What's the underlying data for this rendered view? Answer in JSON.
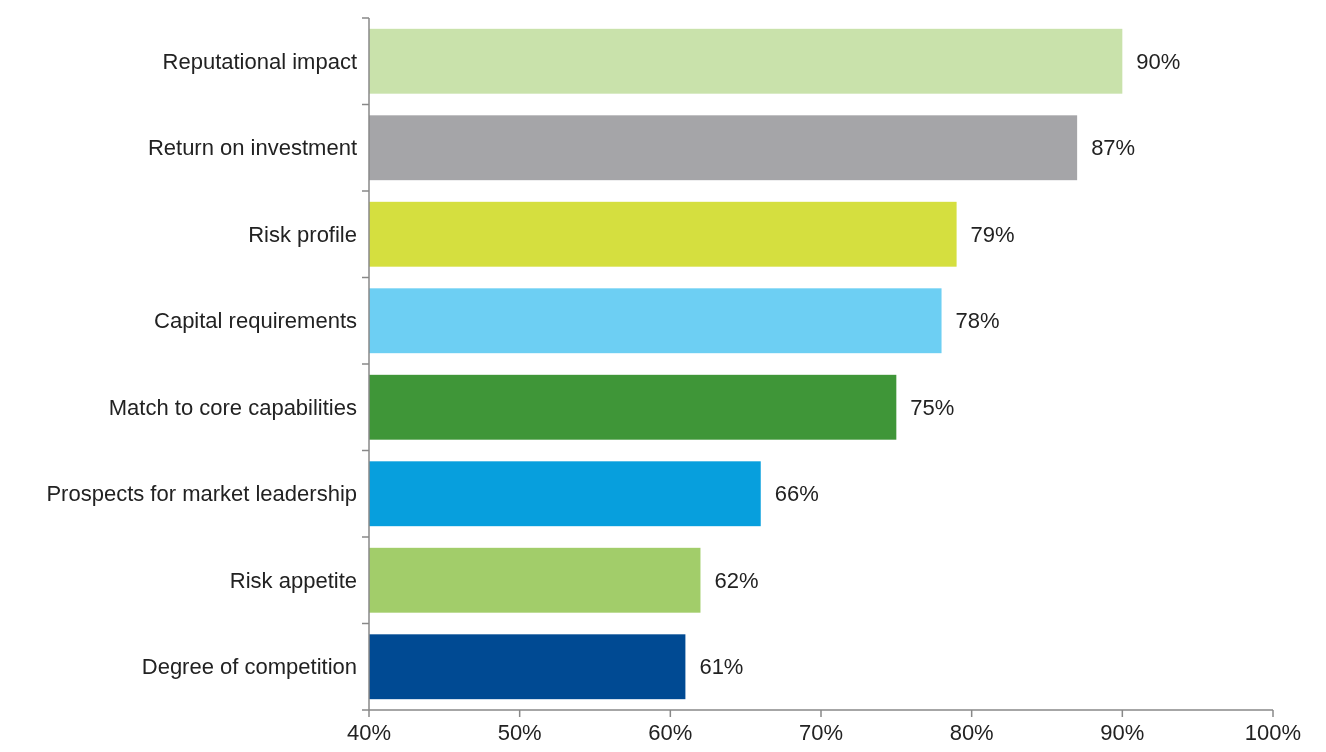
{
  "chart_data": {
    "type": "bar",
    "orientation": "horizontal",
    "categories": [
      "Reputational impact",
      "Return on investment",
      "Risk profile",
      "Capital requirements",
      "Match to core capabilities",
      "Prospects for market leadership",
      "Risk appetite",
      "Degree of competition"
    ],
    "values": [
      90,
      87,
      79,
      78,
      75,
      66,
      62,
      61
    ],
    "colors": [
      "#c9e2ab",
      "#a5a5a8",
      "#d5df3f",
      "#6dcff3",
      "#3f9638",
      "#079fdd",
      "#a2cd6a",
      "#004a93"
    ],
    "value_labels": [
      "90%",
      "87%",
      "79%",
      "78%",
      "75%",
      "66%",
      "62%",
      "61%"
    ],
    "xlim": [
      40,
      100
    ],
    "xticks": [
      {
        "value": 40,
        "label": "40%"
      },
      {
        "value": 50,
        "label": "50%"
      },
      {
        "value": 60,
        "label": "60%"
      },
      {
        "value": 70,
        "label": "70%"
      },
      {
        "value": 80,
        "label": "80%"
      },
      {
        "value": 90,
        "label": "90%"
      },
      {
        "value": 100,
        "label": "100%"
      }
    ],
    "grid": false
  }
}
